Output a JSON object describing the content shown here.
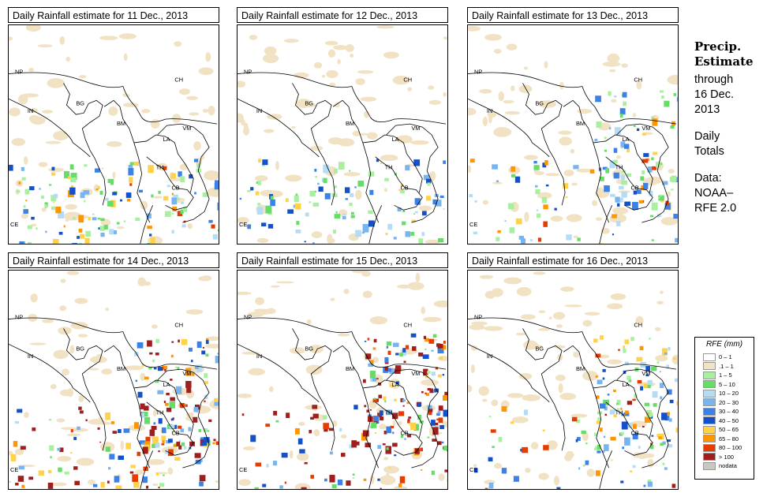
{
  "panels": [
    {
      "title": "Daily Rainfall estimate for  11 Dec., 2013",
      "intensity": 0.45,
      "focus": "southwest"
    },
    {
      "title": "Daily Rainfall estimate for  12 Dec., 2013",
      "intensity": 0.3,
      "focus": "southwest"
    },
    {
      "title": "Daily Rainfall estimate for  13 Dec., 2013",
      "intensity": 0.45,
      "focus": "east"
    },
    {
      "title": "Daily Rainfall estimate for  14 Dec., 2013",
      "intensity": 0.85,
      "focus": "east"
    },
    {
      "title": "Daily Rainfall estimate for  15 Dec., 2013",
      "intensity": 0.9,
      "focus": "east"
    },
    {
      "title": "Daily Rainfall estimate for  16 Dec., 2013",
      "intensity": 0.55,
      "focus": "east"
    }
  ],
  "country_labels": [
    "NP",
    "CH",
    "IN",
    "BG",
    "BM",
    "VM",
    "LA",
    "TH",
    "CB",
    "CE"
  ],
  "side": {
    "title_line1": "Precip.",
    "title_line2": "Estimate",
    "through": "through",
    "date_line1": "16 Dec.",
    "date_line2": "2013",
    "daily_line1": "Daily",
    "daily_line2": "Totals",
    "data_line1": "Data:",
    "data_line2": "NOAA–",
    "data_line3": "RFE 2.0"
  },
  "legend": {
    "title": "RFE (mm)",
    "items": [
      {
        "label": "0 – 1",
        "color": "#ffffff"
      },
      {
        "label": ".1 – 1",
        "color": "#f2e2c4"
      },
      {
        "label": "1 – 5",
        "color": "#a8f0a0"
      },
      {
        "label": "5 – 10",
        "color": "#66dd66"
      },
      {
        "label": "10 – 20",
        "color": "#b4dcf5"
      },
      {
        "label": "20 – 30",
        "color": "#78b4f0"
      },
      {
        "label": "30 – 40",
        "color": "#3c82e6"
      },
      {
        "label": "40 – 50",
        "color": "#1450c8"
      },
      {
        "label": "50 – 65",
        "color": "#ffd24a"
      },
      {
        "label": "65 – 80",
        "color": "#ff9600"
      },
      {
        "label": "80 – 100",
        "color": "#e63c00"
      },
      {
        "label": "> 100",
        "color": "#a01e1e"
      },
      {
        "label": "nodata",
        "color": "#c8c8c0"
      }
    ]
  }
}
